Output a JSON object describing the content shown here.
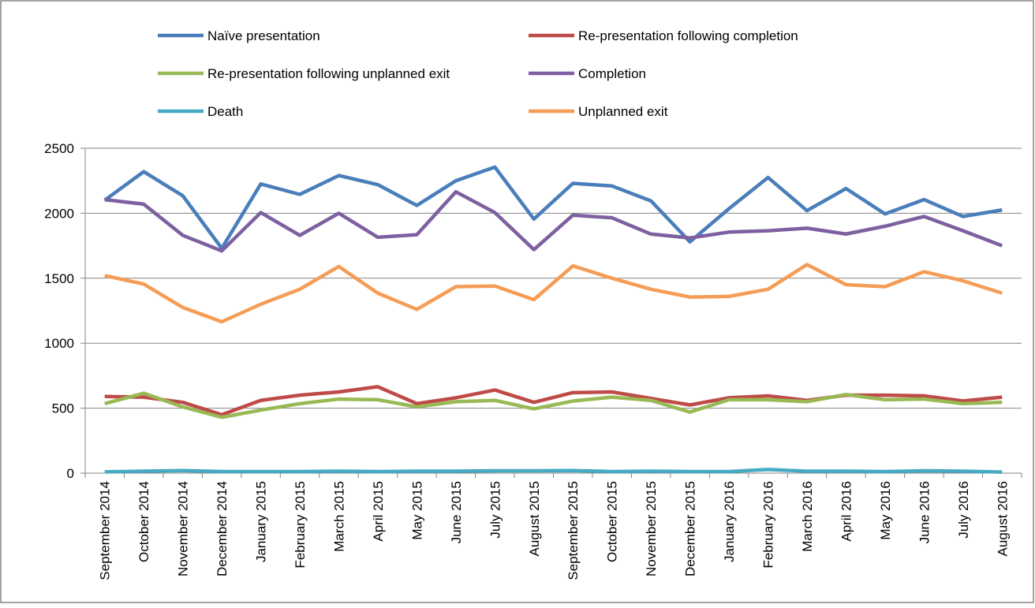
{
  "chart_data": {
    "type": "line",
    "categories": [
      "September 2014",
      "October 2014",
      "November 2014",
      "December 2014",
      "January 2015",
      "February 2015",
      "March 2015",
      "April 2015",
      "May 2015",
      "June 2015",
      "July 2015",
      "August 2015",
      "September 2015",
      "October 2015",
      "November 2015",
      "December 2015",
      "January 2016",
      "February 2016",
      "March 2016",
      "April 2016",
      "May 2016",
      "June 2016",
      "July 2016",
      "August 2016"
    ],
    "series": [
      {
        "name": "Naïve presentation",
        "color": "#4a7ebb",
        "values": [
          2100,
          2320,
          2135,
          1730,
          2225,
          2145,
          2290,
          2220,
          2060,
          2250,
          2355,
          1955,
          2230,
          2210,
          2095,
          1780,
          2035,
          2275,
          2020,
          2190,
          1995,
          2105,
          1975,
          2025
        ]
      },
      {
        "name": "Re-presentation following completion",
        "color": "#be4b48",
        "values": [
          590,
          585,
          545,
          450,
          560,
          600,
          625,
          665,
          535,
          580,
          640,
          545,
          620,
          625,
          575,
          525,
          580,
          595,
          560,
          600,
          600,
          595,
          555,
          585
        ]
      },
      {
        "name": "Re-presentation following unplanned exit",
        "color": "#98b954",
        "values": [
          535,
          615,
          510,
          430,
          485,
          535,
          570,
          565,
          510,
          550,
          560,
          495,
          555,
          585,
          560,
          470,
          565,
          565,
          550,
          605,
          565,
          570,
          535,
          545
        ]
      },
      {
        "name": "Completion",
        "color": "#7d60a0",
        "values": [
          2105,
          2070,
          1830,
          1710,
          2005,
          1830,
          2000,
          1815,
          1835,
          2165,
          2005,
          1720,
          1985,
          1965,
          1840,
          1810,
          1855,
          1865,
          1885,
          1840,
          1900,
          1975,
          1865,
          1750
        ]
      },
      {
        "name": "Death",
        "color": "#46aac5",
        "values": [
          10,
          15,
          20,
          12,
          12,
          12,
          15,
          12,
          15,
          15,
          18,
          18,
          20,
          12,
          15,
          12,
          12,
          28,
          15,
          15,
          12,
          18,
          15,
          8
        ]
      },
      {
        "name": "Unplanned exit",
        "color": "#f59d56",
        "values": [
          1520,
          1455,
          1275,
          1165,
          1300,
          1415,
          1590,
          1385,
          1260,
          1435,
          1440,
          1335,
          1595,
          1500,
          1415,
          1355,
          1360,
          1415,
          1605,
          1450,
          1435,
          1550,
          1480,
          1385
        ]
      }
    ],
    "ylim": [
      0,
      2500
    ],
    "yticks": [
      0,
      500,
      1000,
      1500,
      2000,
      2500
    ],
    "grid": true
  }
}
